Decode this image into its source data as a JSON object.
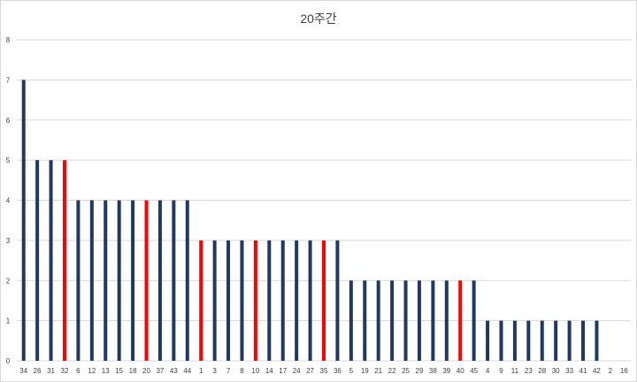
{
  "chart_data": {
    "type": "bar",
    "title": "20주간",
    "xlabel": "",
    "ylabel": "",
    "ylim": [
      0,
      8
    ],
    "yticks": [
      0,
      1,
      2,
      3,
      4,
      5,
      6,
      7,
      8
    ],
    "grid": true,
    "legend": "none",
    "categories": [
      "34",
      "26",
      "31",
      "32",
      "6",
      "12",
      "13",
      "15",
      "18",
      "20",
      "37",
      "43",
      "44",
      "1",
      "3",
      "7",
      "8",
      "10",
      "14",
      "17",
      "24",
      "27",
      "35",
      "36",
      "5",
      "19",
      "21",
      "22",
      "25",
      "29",
      "38",
      "39",
      "40",
      "45",
      "4",
      "9",
      "11",
      "23",
      "28",
      "30",
      "33",
      "41",
      "42",
      "2",
      "16"
    ],
    "values": [
      7,
      5,
      5,
      5,
      4,
      4,
      4,
      4,
      4,
      4,
      4,
      4,
      4,
      3,
      3,
      3,
      3,
      3,
      3,
      3,
      3,
      3,
      3,
      3,
      2,
      2,
      2,
      2,
      2,
      2,
      2,
      2,
      2,
      2,
      1,
      1,
      1,
      1,
      1,
      1,
      1,
      1,
      1,
      0,
      0
    ],
    "highlighted_categories": [
      "32",
      "20",
      "1",
      "10",
      "35",
      "40"
    ],
    "colors": {
      "default": "#1f3864",
      "highlight": "#ff0000",
      "grid": "#d9d9d9"
    }
  }
}
